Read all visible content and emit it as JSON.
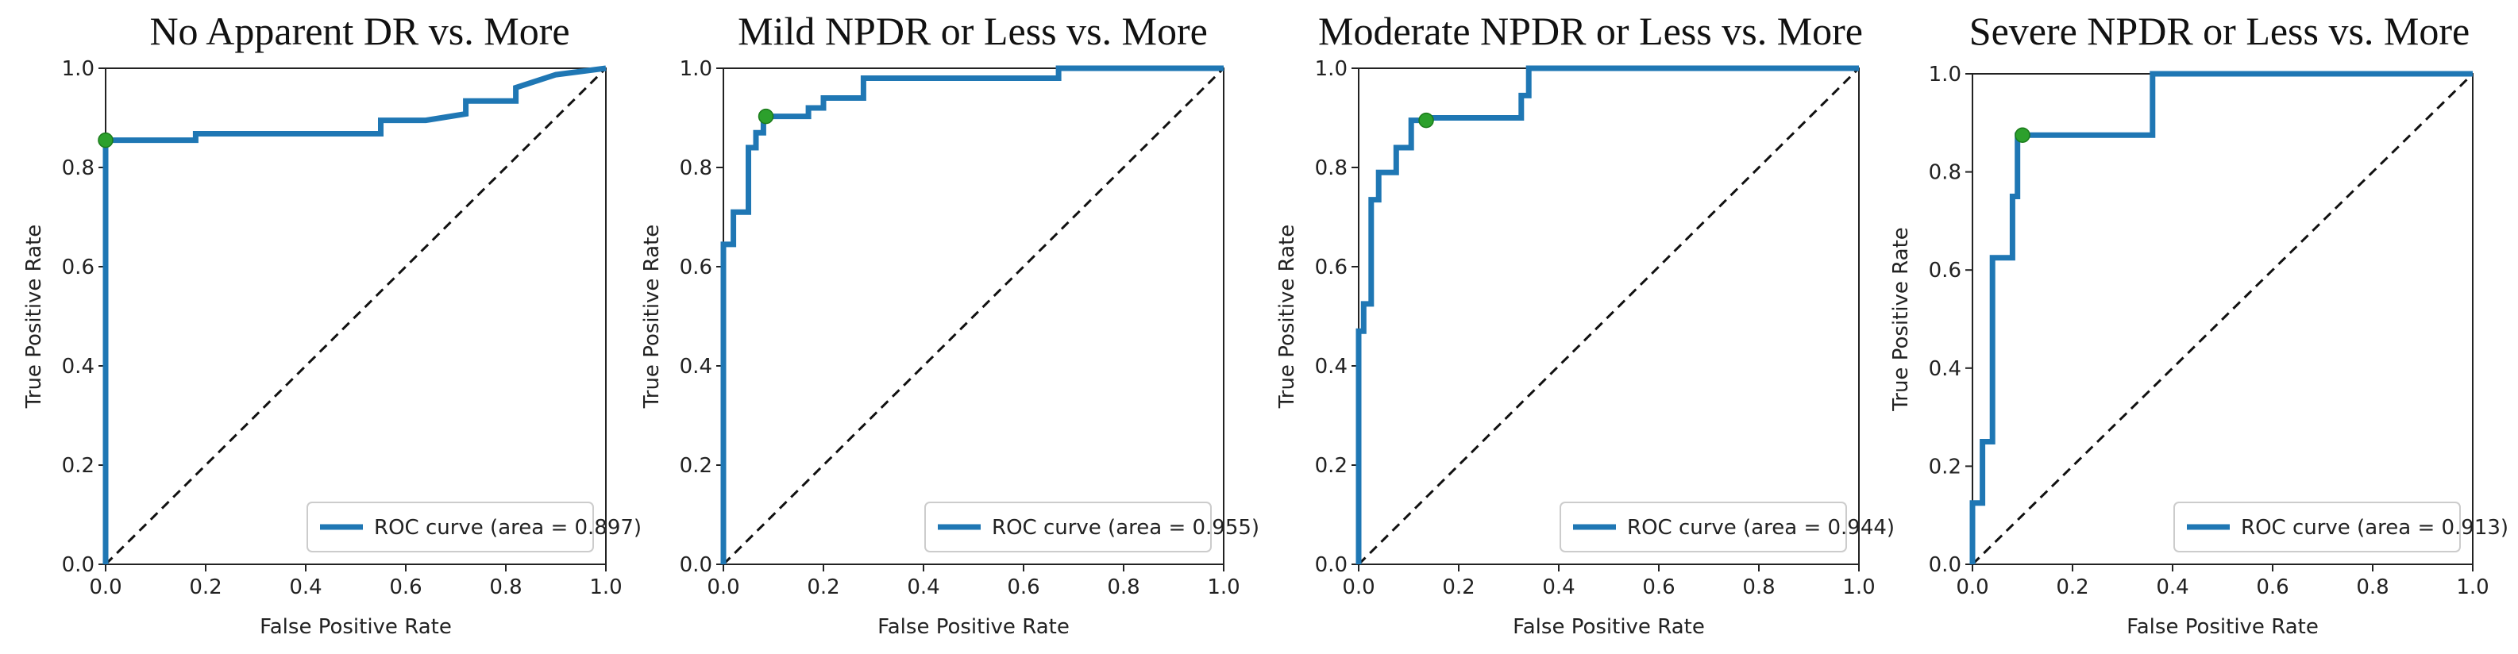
{
  "chart_data": [
    {
      "type": "line",
      "title": "No Apparent DR vs. More",
      "xlabel": "False Positive Rate",
      "ylabel": "True Positive Rate",
      "xlim": [
        0,
        1
      ],
      "ylim": [
        0,
        1
      ],
      "xticks": [
        "0.0",
        "0.2",
        "0.4",
        "0.6",
        "0.8",
        "1.0"
      ],
      "yticks": [
        "0.0",
        "0.2",
        "0.4",
        "0.6",
        "0.8",
        "1.0"
      ],
      "grid": false,
      "legend_position": "lower-right",
      "series": [
        {
          "name": "ROC curve (area = 0.897)",
          "x": [
            0,
            0,
            0.18,
            0.18,
            0.55,
            0.55,
            0.64,
            0.72,
            0.72,
            0.82,
            0.82,
            0.9,
            1.0
          ],
          "y": [
            0,
            0.855,
            0.855,
            0.868,
            0.868,
            0.895,
            0.895,
            0.908,
            0.934,
            0.934,
            0.961,
            0.987,
            1.0
          ]
        }
      ],
      "chance_line": {
        "x": [
          0,
          1
        ],
        "y": [
          0,
          1
        ]
      },
      "operating_point": {
        "x": 0.0,
        "y": 0.855
      }
    },
    {
      "type": "line",
      "title": "Mild NPDR or Less vs. More",
      "xlabel": "False Positive Rate",
      "ylabel": "True Positive Rate",
      "xlim": [
        0,
        1
      ],
      "ylim": [
        0,
        1
      ],
      "xticks": [
        "0.0",
        "0.2",
        "0.4",
        "0.6",
        "0.8",
        "1.0"
      ],
      "yticks": [
        "0.0",
        "0.2",
        "0.4",
        "0.6",
        "0.8",
        "1.0"
      ],
      "grid": false,
      "legend_position": "lower-right",
      "series": [
        {
          "name": "ROC curve (area = 0.955)",
          "x": [
            0,
            0,
            0.02,
            0.02,
            0.05,
            0.05,
            0.065,
            0.065,
            0.08,
            0.08,
            0.17,
            0.17,
            0.2,
            0.2,
            0.28,
            0.28,
            0.67,
            0.67,
            1.0
          ],
          "y": [
            0,
            0.645,
            0.645,
            0.71,
            0.71,
            0.84,
            0.84,
            0.87,
            0.87,
            0.903,
            0.903,
            0.92,
            0.92,
            0.94,
            0.94,
            0.98,
            0.98,
            1.0,
            1.0
          ]
        }
      ],
      "chance_line": {
        "x": [
          0,
          1
        ],
        "y": [
          0,
          1
        ]
      },
      "operating_point": {
        "x": 0.085,
        "y": 0.903
      }
    },
    {
      "type": "line",
      "title": "Moderate NPDR or Less vs. More",
      "xlabel": "False Positive Rate",
      "ylabel": "True Positive Rate",
      "xlim": [
        0,
        1
      ],
      "ylim": [
        0,
        1
      ],
      "xticks": [
        "0.0",
        "0.2",
        "0.4",
        "0.6",
        "0.8",
        "1.0"
      ],
      "yticks": [
        "0.0",
        "0.2",
        "0.4",
        "0.6",
        "0.8",
        "1.0"
      ],
      "grid": false,
      "legend_position": "lower-right",
      "series": [
        {
          "name": "ROC curve (area = 0.944)",
          "x": [
            0,
            0,
            0.01,
            0.01,
            0.025,
            0.025,
            0.04,
            0.04,
            0.075,
            0.075,
            0.105,
            0.105,
            0.135,
            0.135,
            0.325,
            0.325,
            0.34,
            0.34,
            1.0
          ],
          "y": [
            0,
            0.47,
            0.47,
            0.525,
            0.525,
            0.735,
            0.735,
            0.79,
            0.79,
            0.84,
            0.84,
            0.895,
            0.895,
            0.9,
            0.9,
            0.945,
            0.945,
            1.0,
            1.0
          ]
        }
      ],
      "chance_line": {
        "x": [
          0,
          1
        ],
        "y": [
          0,
          1
        ]
      },
      "operating_point": {
        "x": 0.135,
        "y": 0.895
      }
    },
    {
      "type": "line",
      "title": "Severe NPDR or Less vs. More",
      "xlabel": "False Positive Rate",
      "ylabel": "True Positive Rate",
      "xlim": [
        0,
        1
      ],
      "ylim": [
        0,
        1
      ],
      "xticks": [
        "0.0",
        "0.2",
        "0.4",
        "0.6",
        "0.8",
        "1.0"
      ],
      "yticks": [
        "0.0",
        "0.2",
        "0.4",
        "0.6",
        "0.8",
        "1.0"
      ],
      "grid": false,
      "legend_position": "lower-right",
      "series": [
        {
          "name": "ROC curve (area = 0.913)",
          "x": [
            0,
            0,
            0.02,
            0.02,
            0.04,
            0.04,
            0.08,
            0.08,
            0.09,
            0.09,
            0.36,
            0.36,
            1.0
          ],
          "y": [
            0,
            0.125,
            0.125,
            0.25,
            0.25,
            0.625,
            0.625,
            0.75,
            0.75,
            0.875,
            0.875,
            1.0,
            1.0
          ]
        }
      ],
      "chance_line": {
        "x": [
          0,
          1
        ],
        "y": [
          0,
          1
        ]
      },
      "operating_point": {
        "x": 0.1,
        "y": 0.875
      }
    }
  ]
}
